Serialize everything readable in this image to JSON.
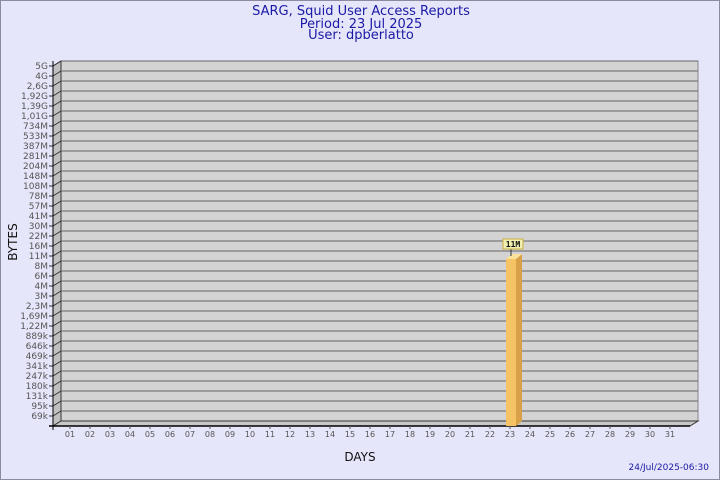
{
  "header": {
    "title": "SARG, Squid User Access Reports",
    "period": "Period: 23 Jul 2025",
    "user": "User: dpberlatto"
  },
  "footer": {
    "timestamp": "24/Jul/2025-06:30"
  },
  "colors": {
    "background": "#e6e6fa",
    "plot": "#d3d3d3",
    "bar": "#f5c264",
    "bar_side": "#d9a04a",
    "title": "#1a1aa6"
  },
  "chart_data": {
    "type": "bar",
    "xlabel": "DAYS",
    "ylabel": "BYTES",
    "y_scale": "log",
    "grid": true,
    "yticks": [
      "5G",
      "4G",
      "2,6G",
      "1,92G",
      "1,39G",
      "1,01G",
      "734M",
      "533M",
      "387M",
      "281M",
      "204M",
      "148M",
      "108M",
      "78M",
      "57M",
      "41M",
      "30M",
      "22M",
      "16M",
      "11M",
      "8M",
      "6M",
      "4M",
      "3M",
      "2,3M",
      "1,69M",
      "1,22M",
      "889k",
      "646k",
      "469k",
      "341k",
      "247k",
      "180k",
      "131k",
      "95k",
      "69k"
    ],
    "categories": [
      "01",
      "02",
      "03",
      "04",
      "05",
      "06",
      "07",
      "08",
      "09",
      "10",
      "11",
      "12",
      "13",
      "14",
      "15",
      "16",
      "17",
      "18",
      "19",
      "20",
      "21",
      "22",
      "23",
      "24",
      "25",
      "26",
      "27",
      "28",
      "29",
      "30",
      "31"
    ],
    "bars": [
      {
        "day": "23",
        "value": "11M",
        "label": "11M"
      }
    ]
  }
}
